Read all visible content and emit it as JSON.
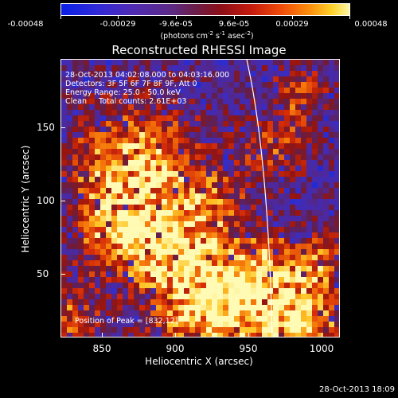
{
  "colorbar": {
    "tick_labels": [
      "-0.00048",
      "-0.00029",
      "-9.6e-05",
      "9.6e-05",
      "0.00029",
      "0.00048"
    ],
    "units_text": "(photons cm",
    "units_exp1": "-2",
    "units_mid": " s",
    "units_exp2": "-1",
    "units_mid2": " asec",
    "units_exp3": "-2",
    "units_end": ")"
  },
  "plot": {
    "title": "Reconstructed RHESSI Image",
    "info_lines": [
      "28-Oct-2013 04:02:08.000 to 04:03:16.000",
      "Detectors: 3F 5F 6F 7F 8F 9F, Att 0",
      "Energy Range: 25.0 - 50.0 keV",
      "Clean     Total counts: 2.61E+03"
    ],
    "peak_label": "Position of Peak = [832,12]",
    "xlabel": "Heliocentric X (arcsec)",
    "ylabel": "Heliocentric Y (arcsec)",
    "x_ticks": [
      "850",
      "900",
      "950",
      "1000"
    ],
    "y_ticks": [
      "50",
      "100",
      "150"
    ]
  },
  "footer": {
    "timestamp": "28-Oct-2013 18:09"
  }
}
